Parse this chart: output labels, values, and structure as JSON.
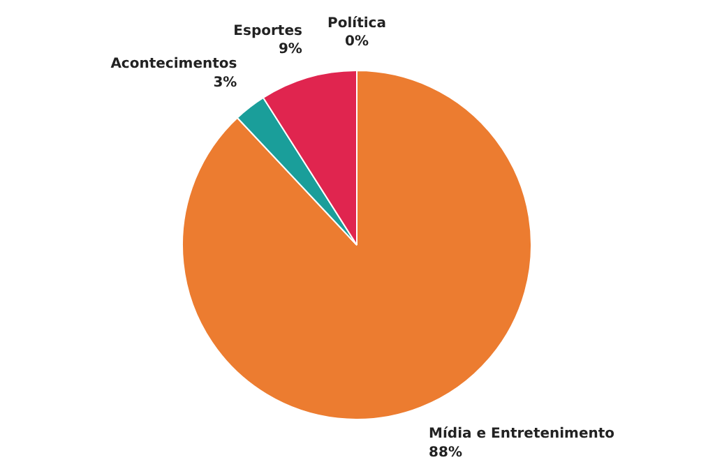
{
  "chart_data": {
    "type": "pie",
    "categories": [
      "Mídia e Entretenimento",
      "Acontecimentos",
      "Esportes",
      "Política"
    ],
    "values": [
      88,
      3,
      9,
      0
    ],
    "value_labels": [
      "88%",
      "3%",
      "9%",
      "0%"
    ],
    "colors": [
      "#ec7c30",
      "#1a9e9a",
      "#e0254f",
      "#4a6fb5"
    ]
  }
}
